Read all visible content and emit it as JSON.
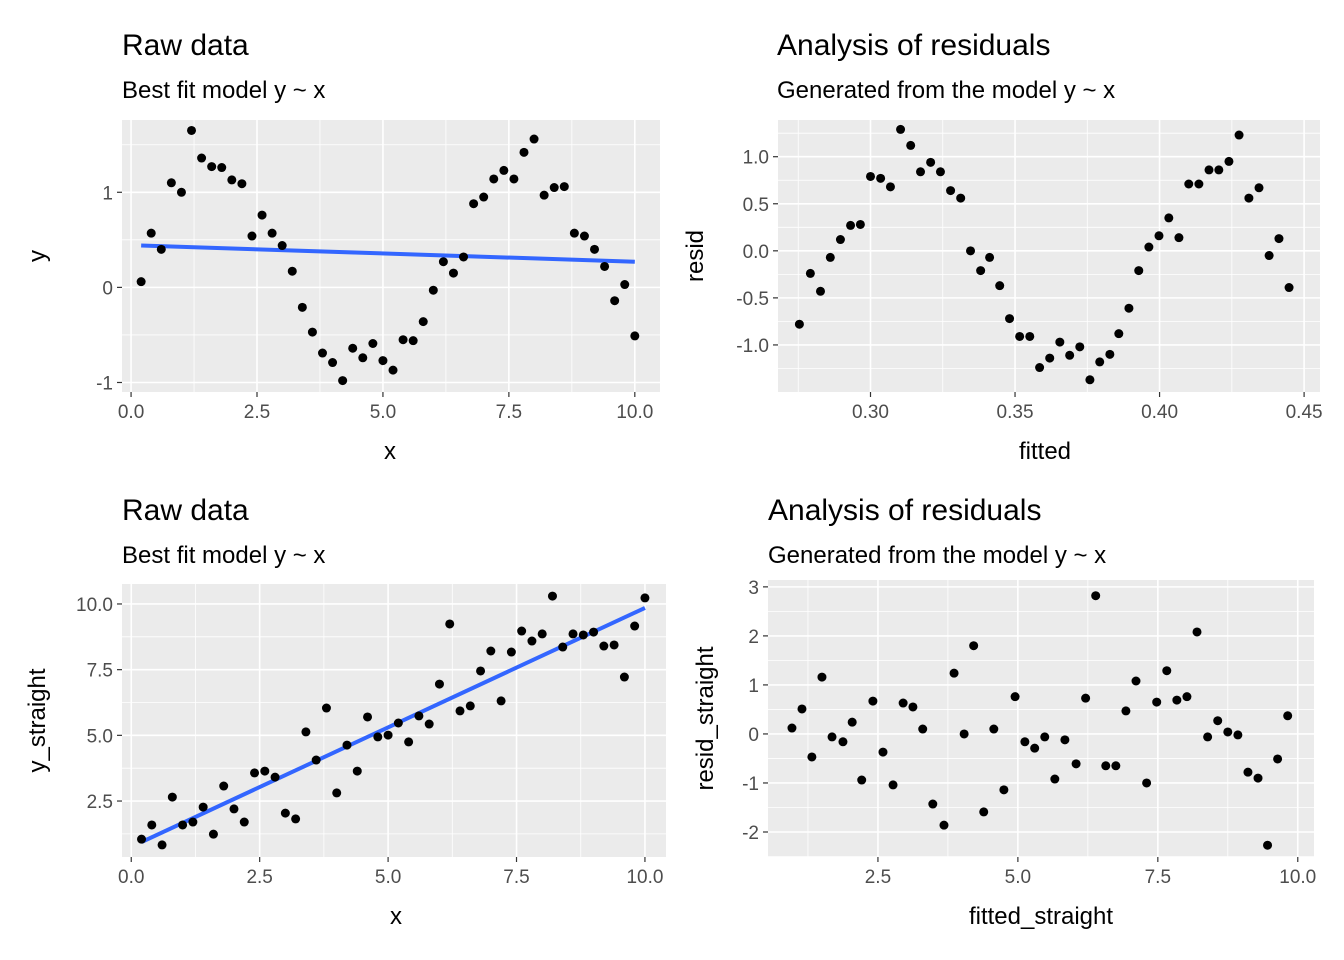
{
  "chart_data": [
    {
      "type": "scatter",
      "title": "Raw data",
      "subtitle": "Best fit model y ~ x",
      "x_label": "x",
      "y_label": "y",
      "x": [
        0.2,
        0.4,
        0.6,
        0.8,
        1.0,
        1.2,
        1.4,
        1.6,
        1.8,
        2.0,
        2.2,
        2.4,
        2.6,
        2.8,
        3.0,
        3.2,
        3.4,
        3.6,
        3.8,
        4.0,
        4.2,
        4.4,
        4.6,
        4.8,
        5.0,
        5.2,
        5.4,
        5.6,
        5.8,
        6.0,
        6.2,
        6.4,
        6.6,
        6.8,
        7.0,
        7.2,
        7.4,
        7.6,
        7.8,
        8.0,
        8.2,
        8.4,
        8.6,
        8.8,
        9.0,
        9.2,
        9.4,
        9.6,
        9.8,
        10.0
      ],
      "values": [
        0.06,
        0.57,
        0.4,
        1.1,
        1.0,
        1.65,
        1.36,
        1.27,
        1.26,
        1.13,
        1.09,
        0.54,
        0.76,
        0.57,
        0.44,
        0.17,
        -0.21,
        -0.47,
        -0.69,
        -0.79,
        -0.98,
        -0.64,
        -0.74,
        -0.59,
        -0.77,
        -0.87,
        -0.55,
        -0.56,
        -0.36,
        -0.03,
        0.27,
        0.15,
        0.32,
        0.88,
        0.95,
        1.14,
        1.23,
        1.14,
        1.42,
        1.56,
        0.97,
        1.05,
        1.06,
        0.57,
        0.54,
        0.4,
        0.22,
        -0.14,
        0.03,
        -0.51
      ],
      "color": "#000000",
      "fit": {
        "x": [
          0.2,
          10.0
        ],
        "values": [
          0.44,
          0.27
        ],
        "color": "#3366FF"
      },
      "xlim": [
        -0.18,
        10.5
      ],
      "ylim": [
        -1.1,
        1.76
      ],
      "xticks": [
        {
          "value": 0,
          "label": "0.0"
        },
        2.5,
        {
          "value": 5,
          "label": "5.0"
        },
        7.5,
        {
          "value": 10,
          "label": "10.0"
        }
      ],
      "yticks": [
        -1,
        0,
        1
      ],
      "grid": true
    },
    {
      "type": "scatter",
      "title": "Analysis of residuals",
      "subtitle": "Generated from the model y ~ x",
      "x_label": "fitted",
      "y_label": "resid",
      "x": [
        0.2754,
        0.2792,
        0.2827,
        0.2861,
        0.2896,
        0.2931,
        0.2965,
        0.3,
        0.3035,
        0.3069,
        0.3104,
        0.3139,
        0.3173,
        0.3208,
        0.3242,
        0.3277,
        0.3312,
        0.3346,
        0.3381,
        0.3412,
        0.3447,
        0.3481,
        0.3516,
        0.3551,
        0.3585,
        0.362,
        0.3655,
        0.3689,
        0.3724,
        0.3759,
        0.3793,
        0.3828,
        0.3859,
        0.3894,
        0.3928,
        0.3963,
        0.3998,
        0.4032,
        0.4067,
        0.4101,
        0.4136,
        0.4171,
        0.4205,
        0.424,
        0.4275,
        0.4309,
        0.4344,
        0.4379,
        0.4413,
        0.4448
      ],
      "values": [
        -0.78,
        -0.24,
        -0.43,
        -0.07,
        0.12,
        0.27,
        0.28,
        0.79,
        0.77,
        0.68,
        1.29,
        1.12,
        0.84,
        0.94,
        0.84,
        0.64,
        0.56,
        0.0,
        -0.21,
        -0.07,
        -0.37,
        -0.72,
        -0.91,
        -0.91,
        -1.24,
        -1.14,
        -0.97,
        -1.11,
        -1.02,
        -1.37,
        -1.18,
        -1.1,
        -0.88,
        -0.61,
        -0.21,
        0.04,
        0.16,
        0.35,
        0.14,
        0.71,
        0.71,
        0.86,
        0.86,
        0.95,
        1.23,
        0.56,
        0.67,
        -0.05,
        0.13,
        -0.39
      ],
      "color": "#000000",
      "xlim": [
        0.268,
        0.4555
      ],
      "ylim": [
        -1.5,
        1.39
      ],
      "xticks": [
        {
          "value": 0.3,
          "label": "0.30"
        },
        0.35,
        {
          "value": 0.4,
          "label": "0.40"
        },
        0.45
      ],
      "yticks": [
        {
          "value": -1,
          "label": "-1.0"
        },
        -0.5,
        {
          "value": 0,
          "label": "0.0"
        },
        0.5,
        {
          "value": 1,
          "label": "1.0"
        }
      ],
      "grid": true
    },
    {
      "type": "scatter",
      "title": "Raw data",
      "subtitle": "Best fit model y ~ x",
      "x_label": "x",
      "y_label": "y_straight",
      "x": [
        0.2,
        0.4,
        0.6,
        0.8,
        1.0,
        1.2,
        1.4,
        1.6,
        1.8,
        2.0,
        2.2,
        2.4,
        2.6,
        2.8,
        3.0,
        3.2,
        3.4,
        3.6,
        3.8,
        4.0,
        4.2,
        4.4,
        4.6,
        4.8,
        5.0,
        5.2,
        5.4,
        5.6,
        5.8,
        6.0,
        6.2,
        6.4,
        6.6,
        6.8,
        7.0,
        7.2,
        7.4,
        7.6,
        7.8,
        8.0,
        8.2,
        8.4,
        8.6,
        8.8,
        9.0,
        9.2,
        9.4,
        9.6,
        9.8,
        10.0
      ],
      "values": [
        1.05,
        1.59,
        0.83,
        2.65,
        1.59,
        1.7,
        2.27,
        1.24,
        3.07,
        2.2,
        1.7,
        3.57,
        3.64,
        3.41,
        2.04,
        1.82,
        5.13,
        4.06,
        6.04,
        2.81,
        4.63,
        3.64,
        5.7,
        4.94,
        5.01,
        5.47,
        4.75,
        5.74,
        5.43,
        6.95,
        9.24,
        5.93,
        6.12,
        7.45,
        8.21,
        6.31,
        8.17,
        8.97,
        8.59,
        8.86,
        10.3,
        8.36,
        8.86,
        8.82,
        8.93,
        8.4,
        8.44,
        7.22,
        9.16,
        10.23
      ],
      "color": "#000000",
      "fit": {
        "x": [
          0.2,
          10.0
        ],
        "values": [
          0.94,
          9.85
        ],
        "color": "#3366FF"
      },
      "xlim": [
        -0.18,
        10.41
      ],
      "ylim": [
        0.37,
        10.76
      ],
      "xticks": [
        {
          "value": 0,
          "label": "0.0"
        },
        2.5,
        {
          "value": 5,
          "label": "5.0"
        },
        7.5,
        {
          "value": 10,
          "label": "10.0"
        }
      ],
      "yticks": [
        2.5,
        {
          "value": 5,
          "label": "5.0"
        },
        7.5,
        {
          "value": 10,
          "label": "10.0"
        }
      ],
      "grid": true
    },
    {
      "type": "scatter",
      "title": "Analysis of residuals",
      "subtitle": "Generated from the model y ~ x",
      "x_label": "fitted_straight",
      "y_label": "resid_straight",
      "x": [
        0.964,
        1.143,
        1.32,
        1.5,
        1.68,
        1.875,
        2.04,
        2.21,
        2.41,
        2.59,
        2.77,
        2.95,
        3.125,
        3.3,
        3.48,
        3.68,
        3.86,
        4.04,
        4.21,
        4.39,
        4.57,
        4.75,
        4.95,
        5.125,
        5.3,
        5.48,
        5.66,
        5.84,
        6.04,
        6.21,
        6.39,
        6.57,
        6.75,
        6.93,
        7.11,
        7.3,
        7.48,
        7.66,
        7.84,
        8.02,
        8.2,
        8.39,
        8.57,
        8.75,
        8.93,
        9.11,
        9.29,
        9.46,
        9.64,
        9.82
      ],
      "values": [
        0.12,
        0.51,
        -0.47,
        1.16,
        -0.06,
        -0.16,
        0.24,
        -0.94,
        0.67,
        -0.37,
        -1.04,
        0.63,
        0.55,
        0.1,
        -1.43,
        -1.86,
        1.24,
        0.0,
        1.8,
        -1.59,
        0.1,
        -1.14,
        0.76,
        -0.16,
        -0.29,
        -0.06,
        -0.92,
        -0.12,
        -0.61,
        0.73,
        2.82,
        -0.65,
        -0.65,
        0.47,
        1.08,
        -1.0,
        0.65,
        1.29,
        0.69,
        0.76,
        2.08,
        -0.06,
        0.27,
        0.04,
        -0.02,
        -0.78,
        -0.9,
        -2.27,
        -0.51,
        0.37
      ],
      "color": "#000000",
      "xlim": [
        0.536,
        10.29
      ],
      "ylim": [
        -2.51,
        3.14
      ],
      "xticks": [
        2.5,
        {
          "value": 5,
          "label": "5.0"
        },
        7.5,
        {
          "value": 10,
          "label": "10.0"
        }
      ],
      "yticks": [
        -2,
        -1,
        0,
        1,
        2,
        3
      ],
      "grid": true
    }
  ]
}
